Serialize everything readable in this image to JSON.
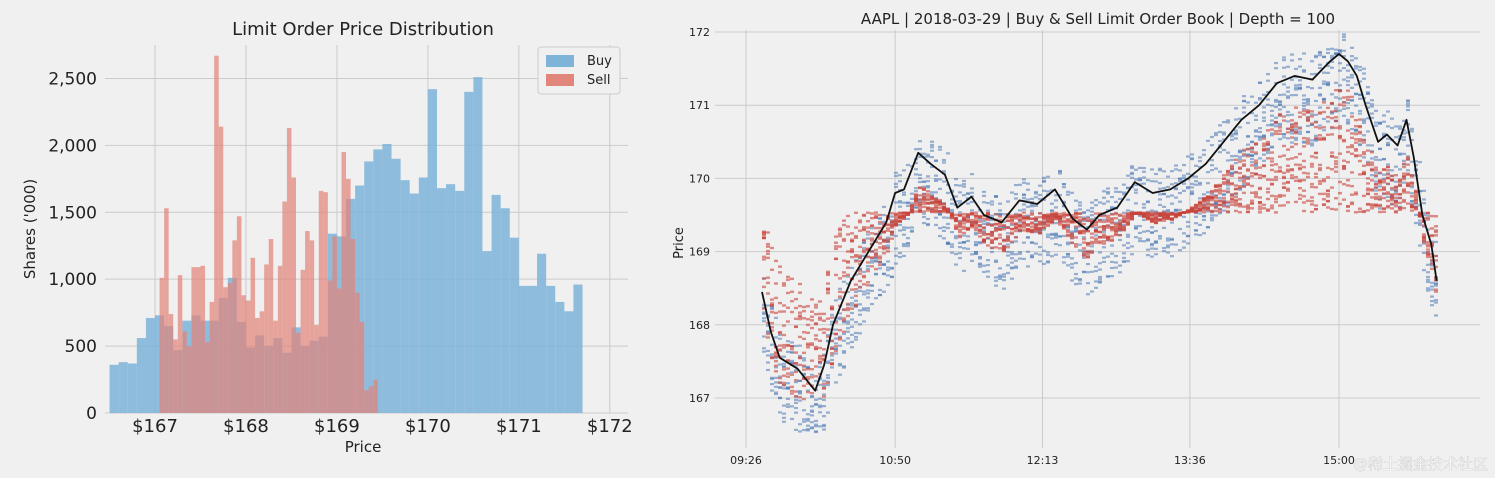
{
  "chart_data": [
    {
      "type": "bar",
      "title": "Limit Order Price Distribution",
      "xlabel": "Price",
      "ylabel": "Shares ('000)",
      "xlim": [
        166.45,
        172.2
      ],
      "ylim": [
        0,
        2750
      ],
      "xticks": [
        167,
        168,
        169,
        170,
        171,
        172
      ],
      "xticklabels": [
        "$167",
        "$168",
        "$169",
        "$170",
        "$171",
        "$172"
      ],
      "yticks": [
        0,
        500,
        1000,
        1500,
        2000,
        2500
      ],
      "yticklabels": [
        "0",
        "500",
        "1,000",
        "1,500",
        "2,000",
        "2,500"
      ],
      "legend_position": "top-right",
      "grid": true,
      "series": [
        {
          "name": "Buy",
          "color": "#7fb4d9",
          "bin_width": 0.1,
          "bins": [
            [
              166.55,
              360
            ],
            [
              166.65,
              380
            ],
            [
              166.75,
              370
            ],
            [
              166.85,
              560
            ],
            [
              166.95,
              710
            ],
            [
              167.05,
              730
            ],
            [
              167.15,
              650
            ],
            [
              167.25,
              470
            ],
            [
              167.35,
              690
            ],
            [
              167.45,
              730
            ],
            [
              167.55,
              690
            ],
            [
              167.65,
              690
            ],
            [
              167.75,
              860
            ],
            [
              167.85,
              1010
            ],
            [
              167.95,
              680
            ],
            [
              168.05,
              490
            ],
            [
              168.15,
              580
            ],
            [
              168.25,
              500
            ],
            [
              168.35,
              560
            ],
            [
              168.45,
              450
            ],
            [
              168.55,
              640
            ],
            [
              168.65,
              500
            ],
            [
              168.75,
              540
            ],
            [
              168.85,
              570
            ],
            [
              168.95,
              1340
            ],
            [
              169.05,
              1320
            ],
            [
              169.15,
              1600
            ],
            [
              169.25,
              1700
            ],
            [
              169.35,
              1880
            ],
            [
              169.45,
              1970
            ],
            [
              169.55,
              2010
            ],
            [
              169.65,
              1900
            ],
            [
              169.75,
              1740
            ],
            [
              169.85,
              1640
            ],
            [
              169.95,
              1760
            ],
            [
              170.05,
              2420
            ],
            [
              170.15,
              1680
            ],
            [
              170.25,
              1710
            ],
            [
              170.35,
              1660
            ],
            [
              170.45,
              2400
            ],
            [
              170.55,
              2510
            ],
            [
              170.65,
              1210
            ],
            [
              170.75,
              1630
            ],
            [
              170.85,
              1530
            ],
            [
              170.95,
              1310
            ],
            [
              171.05,
              950
            ],
            [
              171.15,
              950
            ],
            [
              171.25,
              1190
            ],
            [
              171.35,
              950
            ],
            [
              171.45,
              830
            ],
            [
              171.55,
              760
            ],
            [
              171.65,
              960
            ]
          ]
        },
        {
          "name": "Sell",
          "color": "#e2857a",
          "bin_width": 0.05,
          "bins": [
            [
              167.075,
              1010
            ],
            [
              167.125,
              1530
            ],
            [
              167.175,
              740
            ],
            [
              167.225,
              550
            ],
            [
              167.275,
              1030
            ],
            [
              167.325,
              610
            ],
            [
              167.375,
              500
            ],
            [
              167.425,
              1090
            ],
            [
              167.475,
              1090
            ],
            [
              167.525,
              1100
            ],
            [
              167.575,
              530
            ],
            [
              167.625,
              830
            ],
            [
              167.675,
              2670
            ],
            [
              167.725,
              2140
            ],
            [
              167.775,
              940
            ],
            [
              167.825,
              970
            ],
            [
              167.875,
              1290
            ],
            [
              167.925,
              1470
            ],
            [
              167.975,
              880
            ],
            [
              168.025,
              840
            ],
            [
              168.075,
              1160
            ],
            [
              168.125,
              710
            ],
            [
              168.175,
              760
            ],
            [
              168.225,
              1110
            ],
            [
              168.275,
              1300
            ],
            [
              168.325,
              690
            ],
            [
              168.375,
              1100
            ],
            [
              168.425,
              1580
            ],
            [
              168.475,
              2130
            ],
            [
              168.525,
              1760
            ],
            [
              168.575,
              600
            ],
            [
              168.625,
              1070
            ],
            [
              168.675,
              1360
            ],
            [
              168.725,
              1290
            ],
            [
              168.775,
              660
            ],
            [
              168.825,
              1660
            ],
            [
              168.875,
              1650
            ],
            [
              168.925,
              990
            ],
            [
              168.975,
              1320
            ],
            [
              169.025,
              930
            ],
            [
              169.075,
              1950
            ],
            [
              169.125,
              1750
            ],
            [
              169.175,
              1300
            ],
            [
              169.225,
              900
            ],
            [
              169.275,
              680
            ],
            [
              169.325,
              170
            ],
            [
              169.375,
              200
            ],
            [
              169.425,
              250
            ]
          ]
        }
      ]
    },
    {
      "type": "scatter",
      "title": "AAPL | 2018-03-29 | Buy & Sell Limit Order Book | Depth = 100",
      "xlabel": "",
      "ylabel": "Price",
      "xticks": [
        "09:26",
        "10:50",
        "12:13",
        "13:36",
        "15:00"
      ],
      "yticks": [
        167,
        168,
        169,
        170,
        171,
        172
      ],
      "yticklabels": [
        "167",
        "168",
        "169",
        "170",
        "171",
        "172"
      ],
      "ylim": [
        166.4,
        172.05
      ],
      "grid": true,
      "series": [
        {
          "name": "",
          "color": "#4a78b4"
        },
        {
          "name": "",
          "color": "#c8443c"
        },
        {
          "name": "",
          "color": "#111111",
          "points": [
            [
              "09:35",
              168.45
            ],
            [
              "09:40",
              167.9
            ],
            [
              "09:45",
              167.55
            ],
            [
              "09:55",
              167.4
            ],
            [
              "10:05",
              167.1
            ],
            [
              "10:10",
              167.45
            ],
            [
              "10:15",
              168.0
            ],
            [
              "10:25",
              168.6
            ],
            [
              "10:35",
              169.0
            ],
            [
              "10:45",
              169.4
            ],
            [
              "10:50",
              169.8
            ],
            [
              "10:55",
              169.85
            ],
            [
              "11:03",
              170.35
            ],
            [
              "11:10",
              170.2
            ],
            [
              "11:18",
              170.05
            ],
            [
              "11:25",
              169.6
            ],
            [
              "11:33",
              169.75
            ],
            [
              "11:40",
              169.5
            ],
            [
              "11:50",
              169.4
            ],
            [
              "12:00",
              169.7
            ],
            [
              "12:10",
              169.65
            ],
            [
              "12:20",
              169.85
            ],
            [
              "12:30",
              169.45
            ],
            [
              "12:38",
              169.3
            ],
            [
              "12:45",
              169.5
            ],
            [
              "12:55",
              169.6
            ],
            [
              "13:05",
              169.95
            ],
            [
              "13:15",
              169.8
            ],
            [
              "13:25",
              169.85
            ],
            [
              "13:35",
              170.0
            ],
            [
              "13:45",
              170.2
            ],
            [
              "13:55",
              170.5
            ],
            [
              "14:05",
              170.8
            ],
            [
              "14:15",
              171.0
            ],
            [
              "14:25",
              171.3
            ],
            [
              "14:35",
              171.4
            ],
            [
              "14:45",
              171.35
            ],
            [
              "14:55",
              171.6
            ],
            [
              "15:00",
              171.7
            ],
            [
              "15:05",
              171.6
            ],
            [
              "15:10",
              171.4
            ],
            [
              "15:15",
              171.0
            ],
            [
              "15:22",
              170.5
            ],
            [
              "15:27",
              170.6
            ],
            [
              "15:33",
              170.45
            ],
            [
              "15:38",
              170.8
            ],
            [
              "15:42",
              170.3
            ],
            [
              "15:47",
              169.5
            ],
            [
              "15:52",
              169.1
            ],
            [
              "15:55",
              168.6
            ]
          ]
        }
      ]
    }
  ],
  "watermark": "@稀土掘金技术社区"
}
